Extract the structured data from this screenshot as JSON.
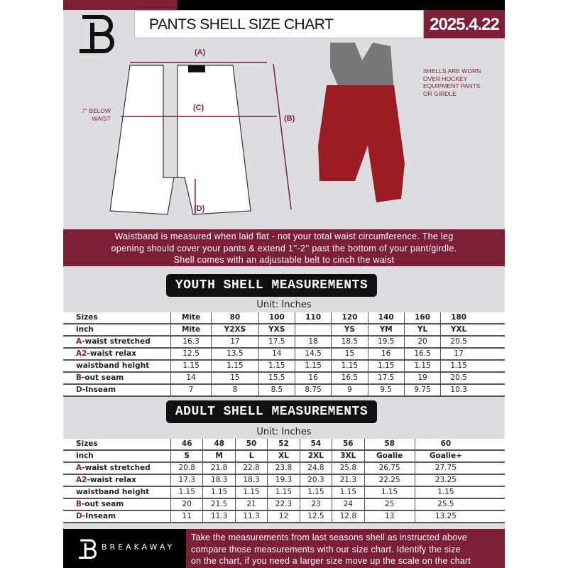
{
  "header": {
    "title": "PANTS SHELL SIZE CHART",
    "date": "2025.4.22",
    "logo": "B"
  },
  "diagram": {
    "label_a": "(A)",
    "label_b": "(B)",
    "label_c": "(C)",
    "label_d": "(D)",
    "below_waist": [
      "7'' BELOW",
      "WAIST"
    ],
    "note": [
      "SHELLS ARE WORN",
      "OVER HOCKEY",
      "EQUIPMENT PANTS",
      "OR GIRDLE"
    ]
  },
  "banner": [
    "Waistband is measured when laid flat - not your total waist circumference. The leg",
    "opening should cover your pants & extend 1''-2'' past the bottom of your pant/girdle.",
    "Shell comes with an adjustable belt to cinch the waist"
  ],
  "youth": {
    "title": "YOUTH SHELL MEASUREMENTS",
    "unit": "Unit: Inches",
    "rows": [
      {
        "p": "",
        "l": "Sizes",
        "v": [
          "Mite",
          "80",
          "100",
          "110",
          "120",
          "140",
          "160",
          "180"
        ]
      },
      {
        "p": "",
        "l": "inch",
        "v": [
          "Mite",
          "Y2XS",
          "YXS",
          "",
          "YS",
          "YM",
          "YL",
          "YXL"
        ]
      },
      {
        "p": "A",
        "l": "-waist stretched",
        "v": [
          "16.3",
          "17",
          "17.5",
          "18",
          "18.5",
          "19.5",
          "20",
          "20.5"
        ]
      },
      {
        "p": "A2",
        "l": "-waist relax",
        "v": [
          "12.5",
          "13.5",
          "14",
          "14.5",
          "15",
          "16",
          "16.5",
          "17"
        ]
      },
      {
        "p": "",
        "l": "waistband height",
        "v": [
          "1.15",
          "1.15",
          "1.15",
          "1.15",
          "1.15",
          "1.15",
          "1.15",
          "1.15"
        ]
      },
      {
        "p": "B",
        "l": "-out seam",
        "v": [
          "14",
          "15",
          "15.5",
          "16",
          "16.5",
          "17.5",
          "19",
          "20.5"
        ]
      },
      {
        "p": "D",
        "l": "-Inseam",
        "v": [
          "7",
          "8",
          "8.5",
          "8.75",
          "9",
          "9.5",
          "9.75",
          "10.3"
        ]
      }
    ]
  },
  "adult": {
    "title": "ADULT SHELL MEASUREMENTS",
    "unit": "Unit: Inches",
    "rows": [
      {
        "p": "",
        "l": "Sizes",
        "v": [
          "46",
          "48",
          "50",
          "52",
          "54",
          "56",
          "58",
          "60"
        ]
      },
      {
        "p": "",
        "l": "inch",
        "v": [
          "S",
          "M",
          "L",
          "XL",
          "2XL",
          "3XL",
          "Goalie",
          "Goalie+"
        ]
      },
      {
        "p": "A",
        "l": "-waist stretched",
        "v": [
          "20.8",
          "21.8",
          "22.8",
          "23.8",
          "24.8",
          "25.8",
          "26.75",
          "27.75"
        ]
      },
      {
        "p": "A2",
        "l": "-waist relax",
        "v": [
          "17.3",
          "18.3",
          "18.3",
          "19.3",
          "20.3",
          "21.3",
          "22.25",
          "23.25"
        ]
      },
      {
        "p": "",
        "l": "waistband height",
        "v": [
          "1.15",
          "1.15",
          "1.15",
          "1.15",
          "1.15",
          "1.15",
          "1.15",
          "1.15"
        ]
      },
      {
        "p": "B",
        "l": "-out seam",
        "v": [
          "20",
          "21.5",
          "21",
          "22.3",
          "23",
          "24",
          "25",
          "25.5"
        ]
      },
      {
        "p": "D",
        "l": "-Inseam",
        "v": [
          "11",
          "11.3",
          "11.3",
          "12",
          "12.5",
          "12.8",
          "13",
          "13.25"
        ]
      }
    ]
  },
  "footer": {
    "brand": "BREAKAWAY",
    "text": [
      "Take the measurements from last seasons shell as instructed above",
      "compare those measurements  with our size chart. Identify the size",
      "on the chart, if you need a larger size move up the scale on the chart"
    ]
  },
  "colors": {
    "maroon": "#7d1f36",
    "panel": "#dcdde1"
  }
}
